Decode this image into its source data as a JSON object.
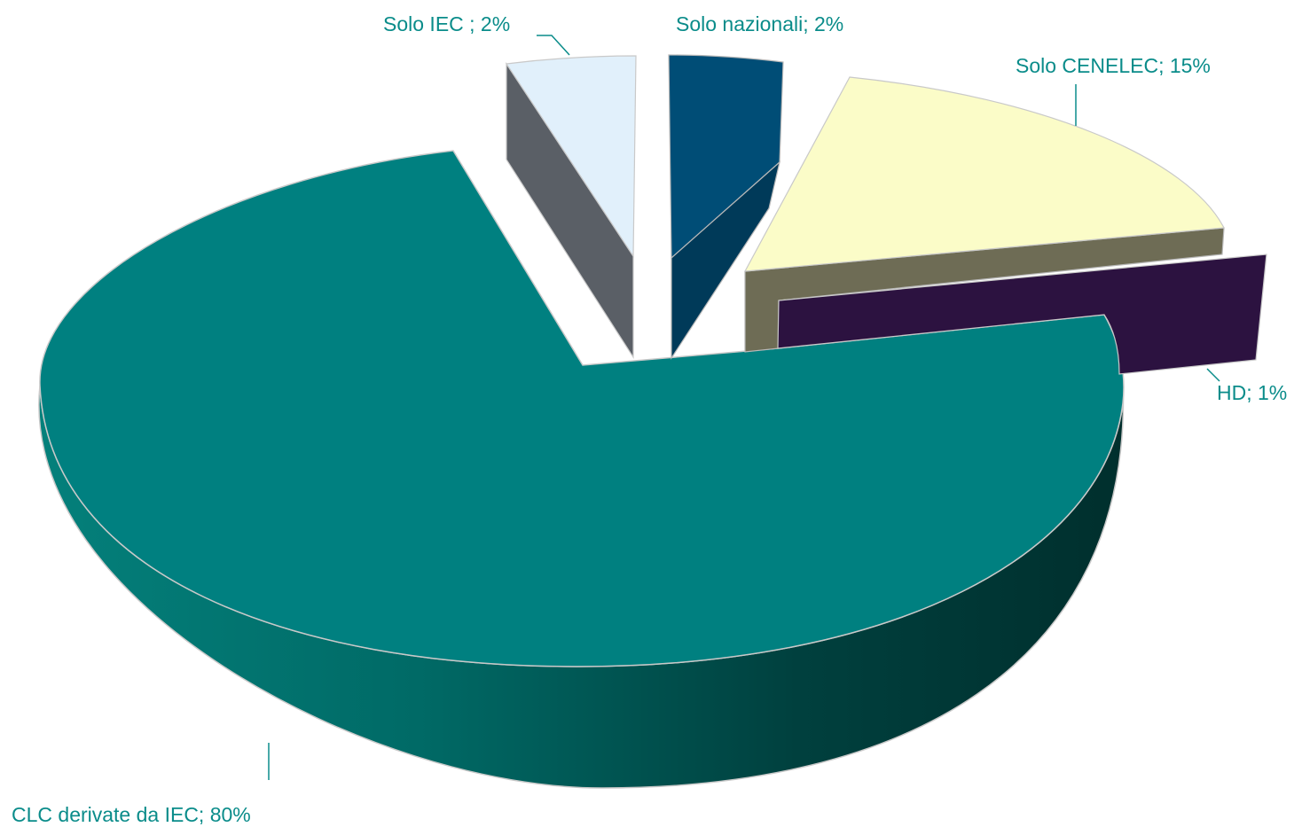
{
  "chart_data": {
    "type": "pie",
    "style": "3d-exploded",
    "title": "",
    "slices": [
      {
        "label": "Solo IEC ; 2%",
        "name": "Solo IEC",
        "value": 2,
        "unit": "%",
        "color": "#e1f0fb",
        "side_color": "#5a5f66"
      },
      {
        "label": "Solo nazionali; 2%",
        "name": "Solo nazionali",
        "value": 2,
        "unit": "%",
        "color": "#004d76",
        "side_color": "#003a59"
      },
      {
        "label": "Solo CENELEC; 15%",
        "name": "Solo CENELEC",
        "value": 15,
        "unit": "%",
        "color": "#fbfcc8",
        "side_color": "#6e6c55"
      },
      {
        "label": "HD; 1%",
        "name": "HD",
        "value": 1,
        "unit": "%",
        "color": "#2c1240",
        "side_color": "#2c1240"
      },
      {
        "label": "CLC derivate da IEC; 80%",
        "name": "CLC derivate da IEC",
        "value": 80,
        "unit": "%",
        "color": "#008080",
        "side_color": "#00605c"
      }
    ],
    "label_color": "#0a8c8a"
  }
}
